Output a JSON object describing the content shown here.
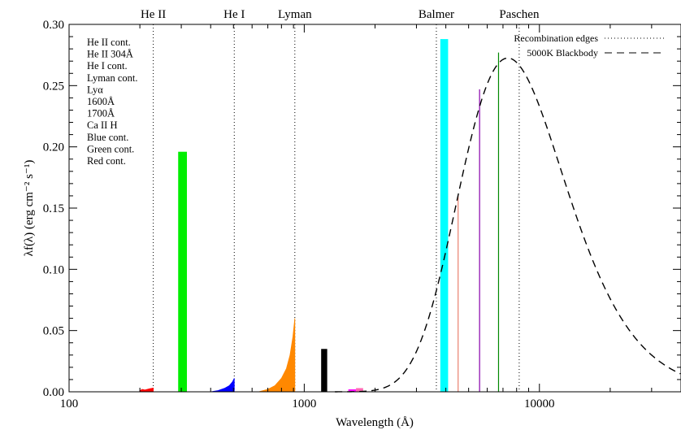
{
  "chart_data": {
    "type": "bar",
    "xlabel": "Wavelength (Å)",
    "ylabel": "λf(λ) (erg cm⁻² s⁻¹)",
    "x_scale": "log",
    "xlim": [
      100,
      40000
    ],
    "ylim": [
      0,
      0.3
    ],
    "x_ticks": [
      {
        "value": 100,
        "label": "100"
      },
      {
        "value": 1000,
        "label": "1000"
      },
      {
        "value": 10000,
        "label": "10000"
      }
    ],
    "y_ticks": [
      {
        "value": 0.0,
        "label": "0.00"
      },
      {
        "value": 0.05,
        "label": "0.05"
      },
      {
        "value": 0.1,
        "label": "0.10"
      },
      {
        "value": 0.15,
        "label": "0.15"
      },
      {
        "value": 0.2,
        "label": "0.20"
      },
      {
        "value": 0.25,
        "label": "0.25"
      },
      {
        "value": 0.3,
        "label": "0.30"
      }
    ],
    "edges": [
      {
        "label": "He II",
        "wavelength": 228
      },
      {
        "label": "He I",
        "wavelength": 504
      },
      {
        "label": "Lyman",
        "wavelength": 912
      },
      {
        "label": "Balmer",
        "wavelength": 3646
      },
      {
        "label": "Paschen",
        "wavelength": 8204
      }
    ],
    "series": [
      {
        "name": "He II cont.",
        "color": "#ff0000",
        "kind": "continuum",
        "wavelengths": [
          200,
          205,
          210,
          215,
          220,
          228
        ],
        "values": [
          0.001,
          0.002,
          0.0015,
          0.002,
          0.0025,
          0.003
        ]
      },
      {
        "name": "He II 304Å",
        "color": "#00ee00",
        "kind": "line",
        "wavelength_range": [
          291,
          317
        ],
        "value": 0.196
      },
      {
        "name": "He I cont.",
        "color": "#0000ff",
        "kind": "continuum",
        "wavelengths": [
          400,
          430,
          460,
          480,
          495,
          504
        ],
        "values": [
          0.0,
          0.001,
          0.003,
          0.005,
          0.008,
          0.011
        ]
      },
      {
        "name": "Lyman cont.",
        "color": "#ff8800",
        "kind": "continuum",
        "wavelengths": [
          640,
          700,
          750,
          800,
          840,
          870,
          895,
          912
        ],
        "values": [
          0.0,
          0.002,
          0.005,
          0.011,
          0.019,
          0.03,
          0.045,
          0.06
        ]
      },
      {
        "name": "Lyα",
        "color": "#000000",
        "kind": "line",
        "wavelength_range": [
          1180,
          1252
        ],
        "value": 0.035
      },
      {
        "name": "1600Å",
        "color": "#ff00ff",
        "kind": "line",
        "wavelength_range": [
          1540,
          1660
        ],
        "value": 0.002
      },
      {
        "name": "1700Å",
        "color": "#ff69b4",
        "kind": "line",
        "wavelength_range": [
          1660,
          1780
        ],
        "value": 0.003
      },
      {
        "name": "Ca II H",
        "color": "#00ffff",
        "kind": "line",
        "wavelength_range": [
          3790,
          4090
        ],
        "value": 0.288
      },
      {
        "name": "Blue cont.",
        "color": "#e9806e",
        "kind": "line",
        "wavelength_range": [
          4490,
          4520
        ],
        "value": 0.16
      },
      {
        "name": "Green cont.",
        "color": "#8800aa",
        "kind": "line",
        "wavelength_range": [
          5540,
          5570
        ],
        "value": 0.247
      },
      {
        "name": "Red cont.",
        "color": "#008800",
        "kind": "line",
        "wavelength_range": [
          6670,
          6700
        ],
        "value": 0.277
      }
    ],
    "blackbody": {
      "name": "5000K Blackbody",
      "temperature_K": 5000,
      "peak_value": 0.2725,
      "style": "dashed"
    },
    "edges_legend": "Recombination edges",
    "legend_position": "top-right",
    "series_legend_position": "top-left",
    "grid": false
  }
}
